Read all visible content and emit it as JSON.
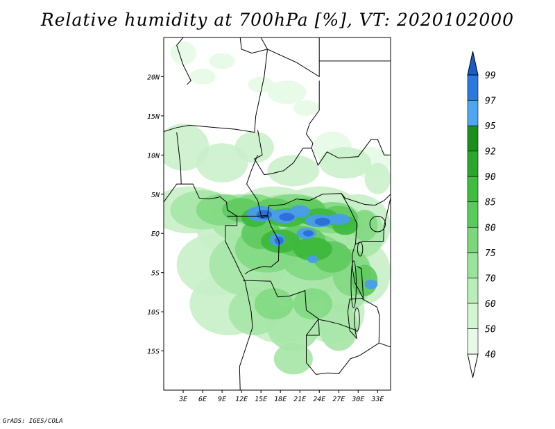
{
  "title": "Relative humidity at 700hPa [%], VT: 2020102000",
  "credit": "GrADS: IGES/COLA",
  "axes": {
    "x_ticks": [
      "3E",
      "6E",
      "9E",
      "12E",
      "15E",
      "18E",
      "21E",
      "24E",
      "27E",
      "30E",
      "33E"
    ],
    "x_tick_values": [
      3,
      6,
      9,
      12,
      15,
      18,
      21,
      24,
      27,
      30,
      33
    ],
    "y_ticks": [
      "20N",
      "15N",
      "10N",
      "5N",
      "EQ",
      "5S",
      "10S",
      "15S"
    ],
    "y_tick_values": [
      20,
      15,
      10,
      5,
      0,
      -5,
      -10,
      -15
    ],
    "lon_range": [
      0,
      35
    ],
    "lat_range": [
      -20,
      25
    ]
  },
  "colorbar": {
    "levels": [
      "40",
      "50",
      "60",
      "70",
      "75",
      "80",
      "85",
      "90",
      "92",
      "95",
      "97",
      "99"
    ],
    "colors": [
      "#ffffff",
      "#e6fae6",
      "#d2f5d2",
      "#b9edb9",
      "#9ae39a",
      "#7ad87a",
      "#5acb5a",
      "#3fbd3f",
      "#2aa62a",
      "#1a8f1a",
      "#4da6f0",
      "#2a78e0",
      "#1a5ccc"
    ]
  },
  "map_colors": {
    "rh_bands": [
      "#e6fae6",
      "#c8f0c8",
      "#a6e6a6",
      "#82d982",
      "#5ec95e",
      "#3cb83c",
      "#2a9f2a",
      "#4a9cec",
      "#2a6fd8"
    ],
    "coast": "#000000"
  }
}
